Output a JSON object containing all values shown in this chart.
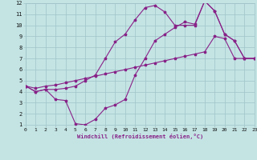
{
  "xlabel": "Windchill (Refroidissement éolien,°C)",
  "bg_color": "#c4e4e4",
  "grid_color": "#a0c4c8",
  "line_color": "#882288",
  "xlim": [
    0,
    23
  ],
  "ylim": [
    1,
    12
  ],
  "xticks": [
    0,
    1,
    2,
    3,
    4,
    5,
    6,
    7,
    8,
    9,
    10,
    11,
    12,
    13,
    14,
    15,
    16,
    17,
    18,
    19,
    20,
    21,
    22,
    23
  ],
  "yticks": [
    1,
    2,
    3,
    4,
    5,
    6,
    7,
    8,
    9,
    10,
    11,
    12
  ],
  "line1_x": [
    0,
    1,
    2,
    3,
    4,
    5,
    6,
    7,
    8,
    9,
    10,
    11,
    12,
    13,
    14,
    15,
    16,
    17,
    18,
    19,
    20,
    21,
    22,
    23
  ],
  "line1_y": [
    4.5,
    4.0,
    4.2,
    3.3,
    3.2,
    1.1,
    1.0,
    1.5,
    2.5,
    2.8,
    3.3,
    5.5,
    7.0,
    8.6,
    9.2,
    9.8,
    10.3,
    10.1,
    12.2,
    11.3,
    9.2,
    8.6,
    7.0,
    7.0
  ],
  "line2_x": [
    0,
    1,
    2,
    3,
    4,
    5,
    6,
    7,
    8,
    9,
    10,
    11,
    12,
    13,
    14,
    15,
    16,
    17,
    18,
    19,
    20,
    21,
    22,
    23
  ],
  "line2_y": [
    4.5,
    4.0,
    4.2,
    4.2,
    4.3,
    4.5,
    5.0,
    5.5,
    7.0,
    8.5,
    9.2,
    10.5,
    11.6,
    11.8,
    11.2,
    10.0,
    10.0,
    10.0,
    12.2,
    11.3,
    9.2,
    8.6,
    7.0,
    7.0
  ],
  "line3_x": [
    0,
    1,
    2,
    3,
    4,
    5,
    6,
    7,
    8,
    9,
    10,
    11,
    12,
    13,
    14,
    15,
    16,
    17,
    18,
    19,
    20,
    21,
    22,
    23
  ],
  "line3_y": [
    4.5,
    4.3,
    4.5,
    4.6,
    4.8,
    5.0,
    5.2,
    5.4,
    5.6,
    5.8,
    6.0,
    6.2,
    6.4,
    6.6,
    6.8,
    7.0,
    7.2,
    7.4,
    7.6,
    9.0,
    8.8,
    7.0,
    7.0,
    7.0
  ]
}
